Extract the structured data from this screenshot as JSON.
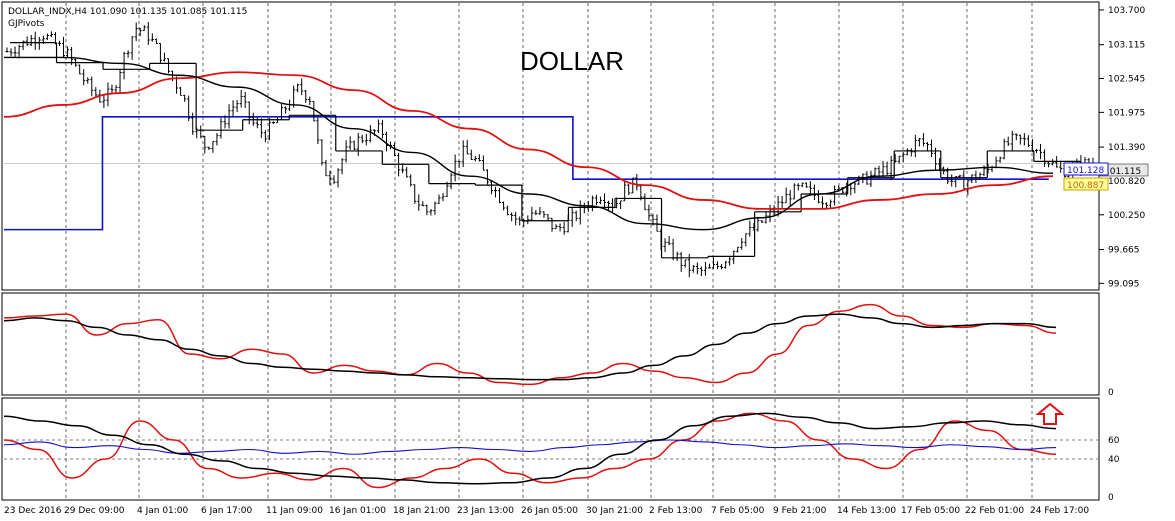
{
  "window": {
    "symbol_line": "DOLLAR_INDX,H4  101.090 101.135 101.085 101.115",
    "indicator_name": "GJPivots",
    "watermark": "DOLLAR"
  },
  "colors": {
    "candles": "#000000",
    "ma_slow": "#e01010",
    "ma_fast": "#000000",
    "pivot_blue": "#1010d0",
    "pivot_black": "#000000",
    "stoch_main": "#e01010",
    "stoch_signal": "#000000",
    "rsi": "#1010d0",
    "current_price_bg": "#e8e8e8",
    "blue_tag_bg": "#ffffff",
    "yellow_tag_bg": "#ffff99",
    "arrow": "#e01010"
  },
  "chart_data": [
    {
      "type": "candlestick",
      "title": "DOLLAR_INDX,H4",
      "price_axis_ticks": [
        "103.700",
        "103.115",
        "102.545",
        "101.975",
        "101.390",
        "100.820",
        "100.250",
        "99.665",
        "99.095"
      ],
      "ylim": [
        99.0,
        103.8
      ],
      "time_axis_ticks": [
        "23 Dec 2016",
        "29 Dec 09:00",
        "4 Jan 01:00",
        "6 Jan 17:00",
        "11 Jan 09:00",
        "16 Jan 01:00",
        "18 Jan 21:00",
        "23 Jan 13:00",
        "26 Jan 05:00",
        "30 Jan 21:00",
        "2 Feb 13:00",
        "7 Feb 05:00",
        "9 Feb 21:00",
        "14 Feb 13:00",
        "17 Feb 05:00",
        "22 Feb 01:00",
        "24 Feb 17:00"
      ],
      "current_price": "101.115",
      "price_tags": [
        {
          "value": "101.128",
          "style": "blue"
        },
        {
          "value": "100.887",
          "style": "yellow"
        }
      ],
      "close_path": [
        103.0,
        103.1,
        103.2,
        103.3,
        103.15,
        103.0,
        102.7,
        102.4,
        102.2,
        102.3,
        102.9,
        103.4,
        103.3,
        103.0,
        102.6,
        102.3,
        101.7,
        101.4,
        101.6,
        102.0,
        102.2,
        101.8,
        101.6,
        101.8,
        102.1,
        102.4,
        102.2,
        101.0,
        100.9,
        101.3,
        101.5,
        101.6,
        101.7,
        101.3,
        100.9,
        100.5,
        100.3,
        100.5,
        101.0,
        101.3,
        101.2,
        100.9,
        100.6,
        100.3,
        100.1,
        100.3,
        100.2,
        100.0,
        100.1,
        100.3,
        100.5,
        100.6,
        100.4,
        100.7,
        100.8,
        100.2,
        99.8,
        99.6,
        99.4,
        99.3,
        99.3,
        99.4,
        99.6,
        99.9,
        100.0,
        100.2,
        100.4,
        100.6,
        100.7,
        100.6,
        100.5,
        100.6,
        100.8,
        100.8,
        100.9,
        101.0,
        101.1,
        101.3,
        101.5,
        101.4,
        101.0,
        100.8,
        100.8,
        100.9,
        101.0,
        101.3,
        101.5,
        101.5,
        101.4,
        101.2,
        101.0,
        101.0,
        101.1,
        101.12
      ],
      "moving_averages": [
        {
          "color_key": "ma_slow",
          "path": [
            101.9,
            102.1,
            102.3,
            102.55,
            102.65,
            102.6,
            102.35,
            102.0,
            101.7,
            101.35,
            101.05,
            100.75,
            100.5,
            100.35,
            100.35,
            100.5,
            100.6,
            100.75,
            100.9
          ]
        },
        {
          "color_key": "ma_fast",
          "path": [
            102.9,
            102.9,
            102.8,
            102.6,
            102.4,
            102.1,
            101.7,
            101.3,
            100.9,
            100.6,
            100.4,
            100.1,
            100.0,
            100.2,
            100.6,
            100.9,
            101.0,
            101.05,
            100.95
          ]
        }
      ],
      "pivot_levels_blue": [
        {
          "from": 0.0,
          "to": 0.09,
          "value": 100.0
        },
        {
          "from": 0.09,
          "to": 0.52,
          "value": 101.9
        },
        {
          "from": 0.52,
          "to": 0.955,
          "value": 100.85
        }
      ]
    },
    {
      "type": "line",
      "title": "",
      "series": [
        {
          "color_key": "stoch_main",
          "values": [
            78,
            80,
            82,
            60,
            72,
            76,
            40,
            35,
            45,
            40,
            20,
            28,
            22,
            18,
            30,
            20,
            10,
            8,
            15,
            20,
            30,
            22,
            15,
            10,
            20,
            40,
            70,
            85,
            92,
            80,
            70,
            68,
            72,
            70,
            62
          ]
        },
        {
          "color_key": "stoch_signal",
          "values": [
            75,
            78,
            75,
            68,
            60,
            55,
            45,
            38,
            30,
            26,
            24,
            22,
            20,
            18,
            16,
            15,
            14,
            13,
            13,
            15,
            20,
            28,
            38,
            50,
            62,
            72,
            80,
            82,
            78,
            72,
            68,
            70,
            72,
            72,
            68
          ]
        }
      ],
      "y_ticks": [
        "0"
      ],
      "ylim": [
        0,
        100
      ]
    },
    {
      "type": "line",
      "title": "",
      "series": [
        {
          "color_key": "stoch_main",
          "values": [
            60,
            50,
            20,
            40,
            80,
            60,
            30,
            20,
            25,
            18,
            30,
            10,
            20,
            30,
            40,
            25,
            15,
            20,
            30,
            40,
            60,
            80,
            88,
            80,
            60,
            40,
            30,
            50,
            80,
            70,
            50,
            45
          ]
        },
        {
          "color_key": "rsi",
          "values": [
            55,
            58,
            52,
            54,
            50,
            46,
            48,
            50,
            46,
            48,
            45,
            48,
            50,
            52,
            50,
            48,
            52,
            55,
            58,
            60,
            58,
            55,
            52,
            54,
            56,
            54,
            52,
            55,
            53,
            50,
            52
          ]
        },
        {
          "color_key": "stoch_signal",
          "values": [
            85,
            80,
            75,
            65,
            55,
            45,
            38,
            30,
            25,
            22,
            20,
            18,
            15,
            14,
            15,
            20,
            30,
            45,
            60,
            75,
            85,
            88,
            84,
            78,
            72,
            74,
            78,
            80,
            76,
            72
          ]
        }
      ],
      "levels": [
        60,
        40
      ],
      "y_ticks": [
        "60",
        "40",
        "0"
      ],
      "ylim": [
        0,
        100
      ]
    }
  ]
}
